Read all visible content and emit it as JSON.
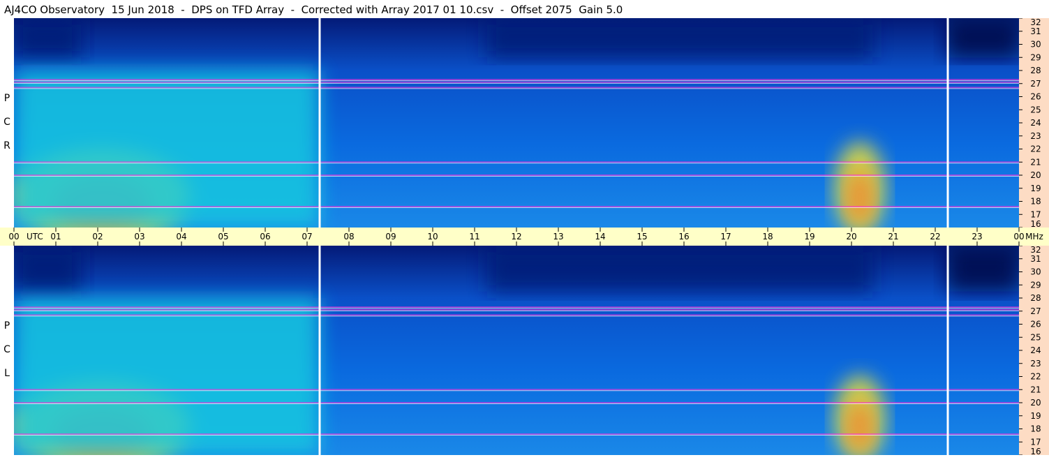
{
  "title": "AJ4CO Observatory  15 Jun 2018  -  DPS on TFD Array  -  Corrected with Array 2017 01 10.csv  -  Offset 2075  Gain 5.0",
  "colors": {
    "background": "#0a6adf",
    "dark_band": "#041a78",
    "cyan_region": "#18c8e0",
    "hot_yellow": "#f0e030",
    "hot_orange": "#f08030",
    "rfi_magenta": "#ff30e0",
    "axis_panel": "#fddcc4",
    "time_axis_panel": "#ffffc8",
    "gap_line": "#ffffff"
  },
  "chart_data": {
    "type": "heatmap",
    "x_unit": "UTC",
    "y_unit": "MHz",
    "time_ticks": [
      "00",
      "01",
      "02",
      "03",
      "04",
      "05",
      "06",
      "07",
      "08",
      "09",
      "10",
      "11",
      "12",
      "13",
      "14",
      "15",
      "16",
      "17",
      "18",
      "19",
      "20",
      "21",
      "22",
      "23",
      "00"
    ],
    "time_range_hours": [
      0,
      24
    ],
    "freq_ticks": [
      "16",
      "17",
      "18",
      "19",
      "20",
      "21",
      "22",
      "23",
      "24",
      "25",
      "26",
      "27",
      "28",
      "29",
      "30",
      "31",
      "32"
    ],
    "freq_range_mhz": [
      16,
      32
    ],
    "unit_labels": {
      "time": "UTC",
      "freq": "MHz"
    },
    "data_gaps_hours": [
      7.3,
      22.3
    ],
    "panels": [
      {
        "id": "rcp",
        "label": [
          "R",
          "C",
          "P"
        ],
        "rfi_lines_mhz": [
          27.1,
          27.3,
          17.6,
          20.0,
          21.0,
          26.7
        ],
        "dark_band_mhz": [
          29.0,
          32.0
        ],
        "emission_regions": [
          {
            "t_hours": [
              0.0,
              4.2
            ],
            "f_mhz": [
              16.0,
              22.5
            ],
            "level": "high"
          },
          {
            "t_hours": [
              19.6,
              20.8
            ],
            "f_mhz": [
              16.5,
              23.0
            ],
            "level": "high"
          },
          {
            "t_hours": [
              0.0,
              7.3
            ],
            "f_mhz": [
              16.0,
              28.0
            ],
            "level": "mid"
          }
        ]
      },
      {
        "id": "lcp",
        "label": [
          "L",
          "C",
          "P"
        ],
        "rfi_lines_mhz": [
          27.1,
          27.3,
          17.6,
          20.0,
          21.0,
          26.7
        ],
        "dark_band_mhz": [
          28.5,
          32.0
        ],
        "emission_regions": [
          {
            "t_hours": [
              0.0,
              4.2
            ],
            "f_mhz": [
              16.0,
              22.0
            ],
            "level": "high"
          },
          {
            "t_hours": [
              19.6,
              20.8
            ],
            "f_mhz": [
              16.5,
              22.5
            ],
            "level": "high"
          },
          {
            "t_hours": [
              0.0,
              7.3
            ],
            "f_mhz": [
              16.0,
              28.0
            ],
            "level": "mid"
          }
        ]
      }
    ]
  }
}
